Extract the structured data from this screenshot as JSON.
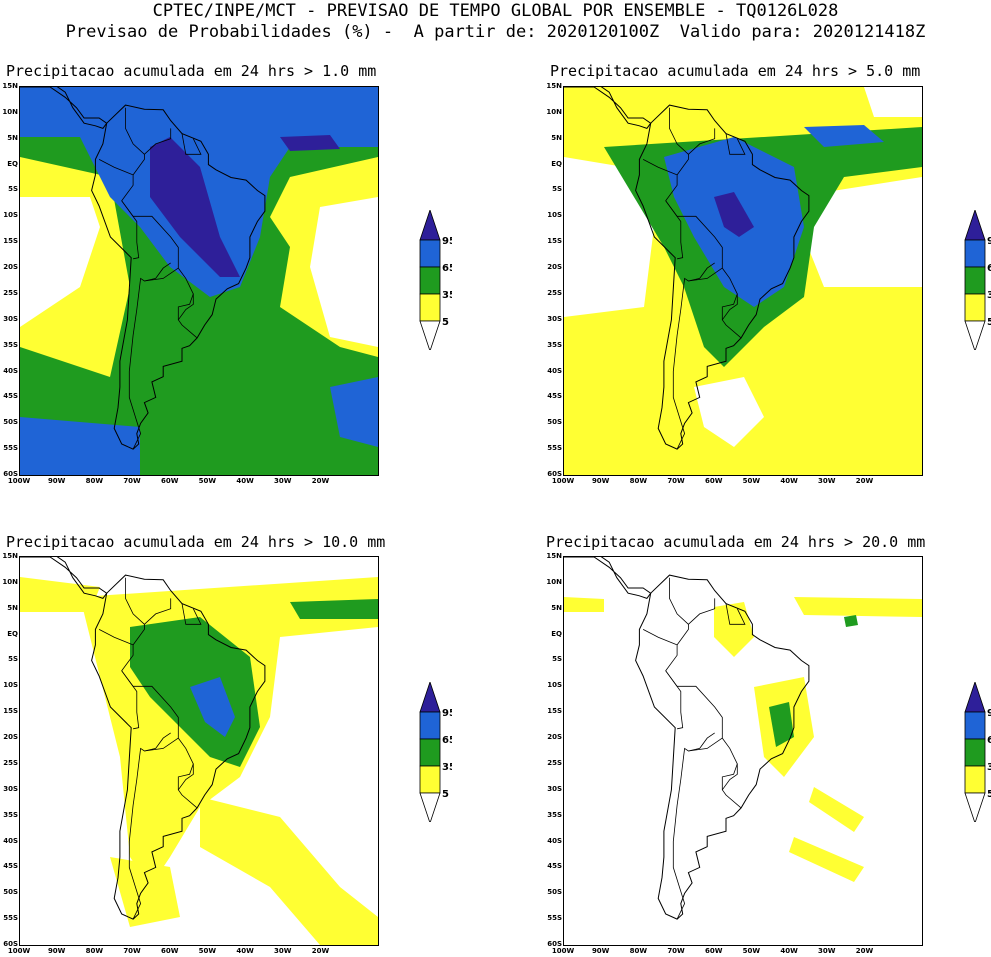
{
  "header": {
    "line1": "CPTEC/INPE/MCT - PREVISAO DE TEMPO GLOBAL POR ENSEMBLE - TQ0126L028",
    "line2": "Previsao de Probabilidades (%) -  A partir de: 2020120100Z  Valido para: 2020121418Z"
  },
  "panels": [
    {
      "title": "Precipitacao acumulada em 24 hrs > 1.0 mm",
      "level": 4
    },
    {
      "title": "Precipitacao acumulada em 24 hrs > 5.0 mm",
      "level": 3
    },
    {
      "title": "Precipitacao acumulada em 24 hrs > 10.0 mm",
      "level": 2
    },
    {
      "title": "Precipitacao acumulada em 24 hrs > 20.0 mm",
      "level": 1
    }
  ],
  "lat_labels": [
    "15N",
    "10N",
    "5N",
    "EQ",
    "5S",
    "10S",
    "15S",
    "20S",
    "25S",
    "30S",
    "35S",
    "40S",
    "45S",
    "50S",
    "55S",
    "60S"
  ],
  "lon_labels": [
    "100W",
    "90W",
    "80W",
    "70W",
    "60W",
    "50W",
    "40W",
    "30W",
    "20W"
  ],
  "colorbar": {
    "levels": [
      "95",
      "65",
      "35",
      "5"
    ],
    "colors": {
      "p5": "#ffff33",
      "p35": "#1f9b1f",
      "p65": "#1f64d6",
      "p95": "#2e1f99",
      "low": "#ffffff"
    }
  }
}
